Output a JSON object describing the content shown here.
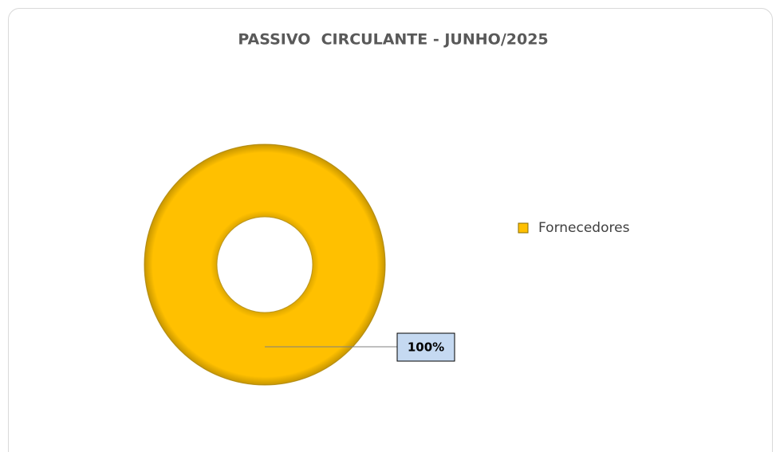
{
  "chart_data": {
    "type": "donut",
    "title": "PASSIVO  CIRCULANTE - JUNHO/2025",
    "categories": [
      "Fornecedores"
    ],
    "values": [
      100
    ],
    "value_labels": [
      "100%"
    ],
    "colors": [
      "#ffc000"
    ],
    "legend": "right"
  }
}
